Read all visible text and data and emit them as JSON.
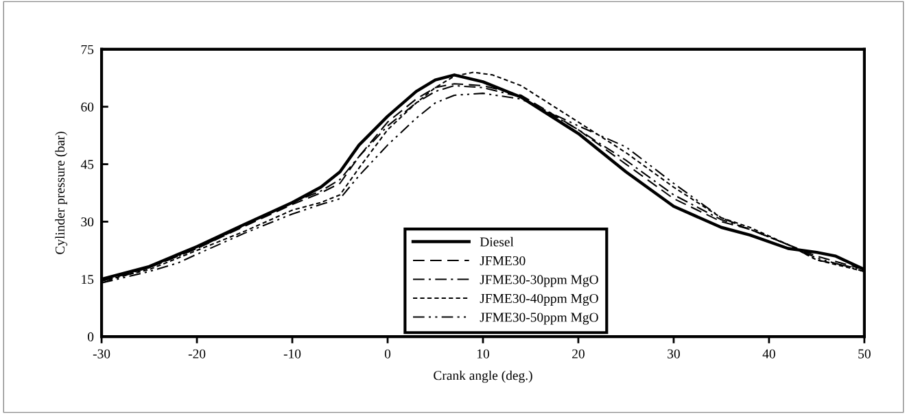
{
  "chart_data": {
    "type": "line",
    "xlabel": "Crank angle (deg.)",
    "ylabel": "Cylinder pressure (bar)",
    "xlim": [
      -30,
      50
    ],
    "xticks": [
      -30,
      -20,
      -10,
      0,
      10,
      20,
      30,
      40,
      50
    ],
    "ylim": [
      0,
      75
    ],
    "yticks": [
      0,
      15,
      30,
      45,
      60,
      75
    ],
    "grid": false,
    "legend": "bottom",
    "marker": "none",
    "series": [
      {
        "name": "Diesel",
        "color": "#000000",
        "line_style": "solid",
        "x": [
          -30,
          -25,
          -20,
          -15,
          -10,
          -7,
          -5,
          -3,
          0,
          3,
          5,
          7,
          10,
          14,
          20,
          25,
          30,
          35,
          38,
          42,
          45,
          47,
          50
        ],
        "values": [
          15,
          18.3,
          23.5,
          29.3,
          35,
          39,
          43,
          50,
          57.5,
          64,
          67,
          68.3,
          66.5,
          62.5,
          53,
          43,
          34,
          28.5,
          26.5,
          23,
          22,
          21,
          17.5
        ]
      },
      {
        "name": "JFME30",
        "color": "#000000",
        "line_style": "dashed",
        "x": [
          -30,
          -25,
          -20,
          -15,
          -10,
          -7,
          -5,
          -3,
          0,
          3,
          5,
          7,
          10,
          14,
          20,
          25,
          30,
          35,
          38,
          42,
          45,
          50
        ],
        "values": [
          14.5,
          18,
          23,
          28.8,
          34.5,
          37.5,
          40,
          47,
          56,
          62,
          65,
          66,
          65.5,
          63,
          54,
          45,
          36,
          30,
          28,
          24,
          21,
          17.5
        ]
      },
      {
        "name": "JFME30-30ppm MgO",
        "color": "#000000",
        "line_style": "dashdot",
        "x": [
          -30,
          -25,
          -20,
          -15,
          -10,
          -7,
          -5,
          -3,
          0,
          3,
          5,
          7,
          10,
          14,
          20,
          25,
          30,
          35,
          38,
          42,
          45,
          50
        ],
        "values": [
          14,
          18,
          23,
          29,
          35,
          38,
          41,
          47,
          55,
          61,
          64,
          65.5,
          65,
          62.5,
          54,
          46,
          37,
          30.5,
          28,
          24,
          20,
          17.5
        ]
      },
      {
        "name": "JFME30-40ppm MgO",
        "color": "#000000",
        "line_style": "dotted",
        "x": [
          -30,
          -25,
          -20,
          -15,
          -10,
          -7,
          -5,
          -3,
          0,
          3,
          5,
          7,
          9,
          11,
          14,
          20,
          25,
          30,
          35,
          38,
          42,
          45,
          50
        ],
        "values": [
          14.5,
          17.5,
          22.5,
          27.5,
          33,
          35,
          37,
          44,
          54,
          61,
          65,
          68,
          69,
          68.3,
          65.5,
          56,
          48,
          39,
          31,
          28.5,
          24,
          20,
          17
        ]
      },
      {
        "name": "JFME30-50ppm MgO",
        "color": "#000000",
        "line_style": "dashdotdot",
        "x": [
          -30,
          -25,
          -22,
          -20,
          -15,
          -10,
          -7,
          -5,
          -3,
          0,
          3,
          5,
          7,
          10,
          14,
          20,
          25,
          30,
          35,
          38,
          42,
          45,
          50
        ],
        "values": [
          14,
          17,
          19.2,
          21.5,
          27,
          32,
          34.5,
          36,
          42,
          50,
          57,
          61,
          63,
          63.5,
          62,
          55,
          49.5,
          40,
          31,
          28,
          24,
          20.5,
          17
        ]
      }
    ]
  }
}
